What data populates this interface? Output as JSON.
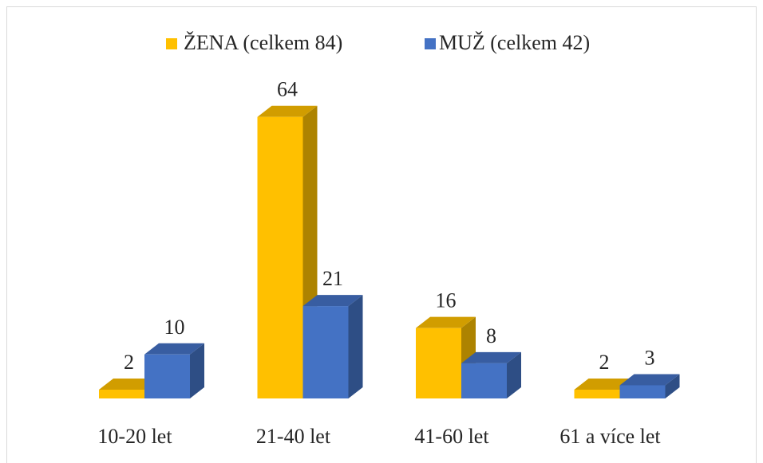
{
  "chart_data": {
    "type": "bar3d",
    "categories": [
      "10-20 let",
      "21-40 let",
      "41-60 let",
      "61 a více let"
    ],
    "series": [
      {
        "name": "ŽENA (celkem 84)",
        "color": "#FFC000",
        "values": [
          2,
          64,
          16,
          2
        ]
      },
      {
        "name": "MUŽ (celkem 42)",
        "color": "#4472C4",
        "values": [
          10,
          21,
          8,
          3
        ]
      }
    ],
    "legend": "top"
  }
}
